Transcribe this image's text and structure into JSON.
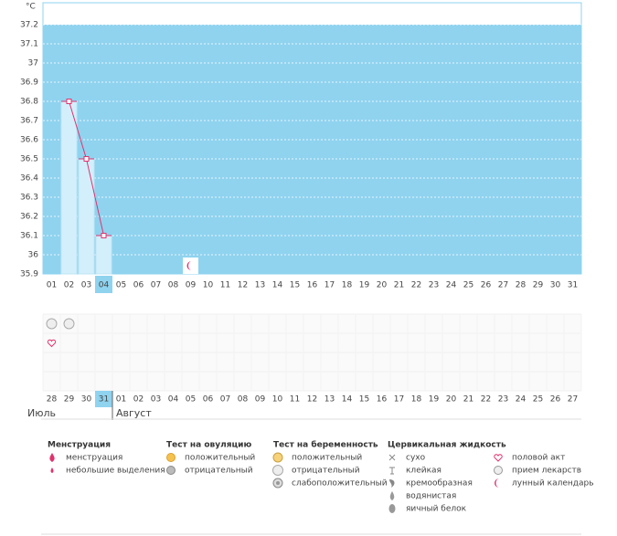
{
  "chart_data": {
    "type": "line",
    "y_unit": "°C",
    "categories": [
      "01",
      "02",
      "03",
      "04",
      "05",
      "06",
      "07",
      "08",
      "09",
      "10",
      "11",
      "12",
      "13",
      "14",
      "15",
      "16",
      "17",
      "18",
      "19",
      "20",
      "21",
      "22",
      "23",
      "24",
      "25",
      "26",
      "27",
      "28",
      "29",
      "30",
      "31"
    ],
    "series": [
      {
        "color": "#e0336e",
        "values": [
          null,
          36.8,
          36.5,
          36.1,
          null,
          null,
          null,
          null,
          null,
          null,
          null,
          null,
          null,
          null,
          null,
          null,
          null,
          null,
          null,
          null,
          null,
          null,
          null,
          null,
          null,
          null,
          null,
          null,
          null,
          null,
          null
        ]
      }
    ],
    "ylim": [
      35.9,
      37.3
    ],
    "yticks": [
      35.9,
      36,
      36.1,
      36.2,
      36.3,
      36.4,
      36.5,
      36.6,
      36.7,
      36.8,
      36.9,
      37,
      37.1,
      37.2
    ],
    "grid": true,
    "selected_index": 3
  },
  "calendar": {
    "dates": [
      "28",
      "29",
      "30",
      "31",
      "01",
      "02",
      "03",
      "04",
      "05",
      "06",
      "07",
      "08",
      "09",
      "10",
      "11",
      "12",
      "13",
      "14",
      "15",
      "16",
      "17",
      "18",
      "19",
      "20",
      "21",
      "22",
      "23",
      "24",
      "25",
      "26",
      "27"
    ],
    "weekend": [
      true,
      false,
      false,
      false,
      false,
      false,
      true,
      true,
      false,
      false,
      false,
      false,
      false,
      true,
      true,
      false,
      false,
      false,
      false,
      false,
      true,
      true,
      false,
      false,
      false,
      false,
      false,
      true,
      true,
      false,
      false
    ],
    "months": [
      {
        "label": "Июль",
        "start_index": 0
      },
      {
        "label": "Август",
        "start_index": 4
      }
    ],
    "markers": [
      {
        "row": 0,
        "index": 0,
        "kind": "pregnancy-negative"
      },
      {
        "row": 0,
        "index": 1,
        "kind": "pregnancy-negative"
      },
      {
        "row": 1,
        "index": 0,
        "kind": "heart"
      },
      {
        "row": -1,
        "index": 8,
        "kind": "moon"
      }
    ]
  },
  "legend": [
    {
      "title": "Менструация",
      "items": [
        {
          "icon": "drop",
          "label": "менструация"
        },
        {
          "icon": "small-drop",
          "label": "небольшие выделения"
        }
      ]
    },
    {
      "title": "Тест на овуляцию",
      "items": [
        {
          "icon": "ov-pos",
          "label": "положительный"
        },
        {
          "icon": "ov-neg",
          "label": "отрицательный"
        }
      ]
    },
    {
      "title": "Тест на беременность",
      "items": [
        {
          "icon": "pr-pos",
          "label": "положительный"
        },
        {
          "icon": "pregnancy-negative",
          "label": "отрицательный"
        },
        {
          "icon": "pr-weak",
          "label": "слабоположительный"
        }
      ]
    },
    {
      "title": "Цервикальная жидкость",
      "items": [
        {
          "icon": "cross",
          "label": "сухо"
        },
        {
          "icon": "tee",
          "label": "клейкая"
        },
        {
          "icon": "cream",
          "label": "кремообразная"
        },
        {
          "icon": "water",
          "label": "водянистая"
        },
        {
          "icon": "egg",
          "label": "яичный белок"
        }
      ]
    },
    {
      "items": [
        {
          "icon": "heart",
          "label": "половой акт"
        },
        {
          "icon": "pill",
          "label": "прием лекарств"
        },
        {
          "icon": "moon",
          "label": "лунный календарь"
        }
      ]
    }
  ]
}
